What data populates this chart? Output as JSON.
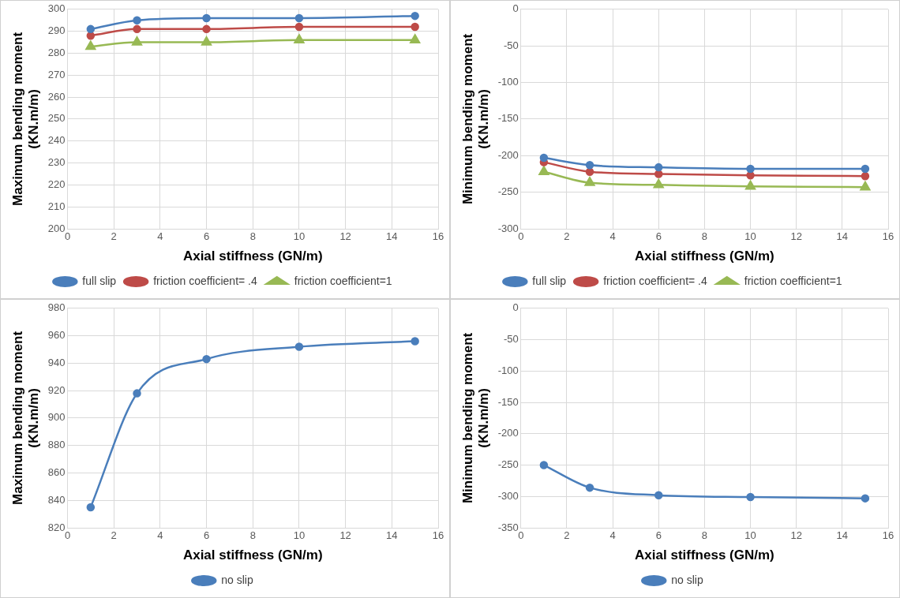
{
  "chart_data": [
    {
      "type": "line",
      "xlabel": "Axial stiffness (GN/m)",
      "ylabel": "Maximum bending moment\n(KN.m/m)",
      "x": [
        1,
        3,
        6,
        10,
        15
      ],
      "xlim": [
        0,
        16
      ],
      "xticks": [
        0,
        2,
        4,
        6,
        8,
        10,
        12,
        14,
        16
      ],
      "ylim": [
        200,
        300
      ],
      "yticks": [
        200,
        210,
        220,
        230,
        240,
        250,
        260,
        270,
        280,
        290,
        300
      ],
      "grid": true,
      "legend": "bottom",
      "marker": "circle",
      "series": [
        {
          "name": "full slip",
          "color": "#4a7ebb",
          "values": [
            291,
            295,
            296,
            296,
            297
          ]
        },
        {
          "name": "friction coefficient= .4",
          "color": "#be4b48",
          "values": [
            288,
            291,
            291,
            292,
            292
          ]
        },
        {
          "name": "friction coefficient=1",
          "color": "#98b954",
          "marker": "triangle",
          "values": [
            283,
            285,
            285,
            286,
            286
          ]
        }
      ]
    },
    {
      "type": "line",
      "xlabel": "Axial stiffness (GN/m)",
      "ylabel": "Minimum bending moment\n(KN.m/m)",
      "x": [
        1,
        3,
        6,
        10,
        15
      ],
      "xlim": [
        0,
        16
      ],
      "xticks": [
        0,
        2,
        4,
        6,
        8,
        10,
        12,
        14,
        16
      ],
      "ylim": [
        -300,
        0
      ],
      "yticks": [
        -300,
        -250,
        -200,
        -150,
        -100,
        -50,
        0
      ],
      "grid": true,
      "legend": "bottom",
      "marker": "circle",
      "series": [
        {
          "name": "full slip",
          "color": "#4a7ebb",
          "values": [
            -203,
            -213,
            -216,
            -218,
            -218
          ]
        },
        {
          "name": "friction coefficient= .4",
          "color": "#be4b48",
          "values": [
            -209,
            -222,
            -225,
            -227,
            -228
          ]
        },
        {
          "name": "friction coefficient=1",
          "color": "#98b954",
          "marker": "triangle",
          "values": [
            -222,
            -237,
            -240,
            -242,
            -243
          ]
        }
      ]
    },
    {
      "type": "line",
      "xlabel": "Axial stiffness (GN/m)",
      "ylabel": "Maximum bending moment\n(KN.m/m)",
      "x": [
        1,
        3,
        6,
        10,
        15
      ],
      "xlim": [
        0,
        16
      ],
      "xticks": [
        0,
        2,
        4,
        6,
        8,
        10,
        12,
        14,
        16
      ],
      "ylim": [
        820,
        980
      ],
      "yticks": [
        820,
        840,
        860,
        880,
        900,
        920,
        940,
        960,
        980
      ],
      "grid": true,
      "legend": "bottom",
      "marker": "circle",
      "series": [
        {
          "name": "no slip",
          "color": "#4a7ebb",
          "values": [
            835,
            918,
            943,
            952,
            956
          ]
        }
      ]
    },
    {
      "type": "line",
      "xlabel": "Axial stiffness (GN/m)",
      "ylabel": "Minimum bending moment\n(KN.m/m)",
      "x": [
        1,
        3,
        6,
        10,
        15
      ],
      "xlim": [
        0,
        16
      ],
      "xticks": [
        0,
        2,
        4,
        6,
        8,
        10,
        12,
        14,
        16
      ],
      "ylim": [
        -350,
        0
      ],
      "yticks": [
        -350,
        -300,
        -250,
        -200,
        -150,
        -100,
        -50,
        0
      ],
      "grid": true,
      "legend": "bottom",
      "marker": "circle",
      "series": [
        {
          "name": "no slip",
          "color": "#4a7ebb",
          "values": [
            -250,
            -286,
            -298,
            -301,
            -303
          ]
        }
      ]
    }
  ]
}
